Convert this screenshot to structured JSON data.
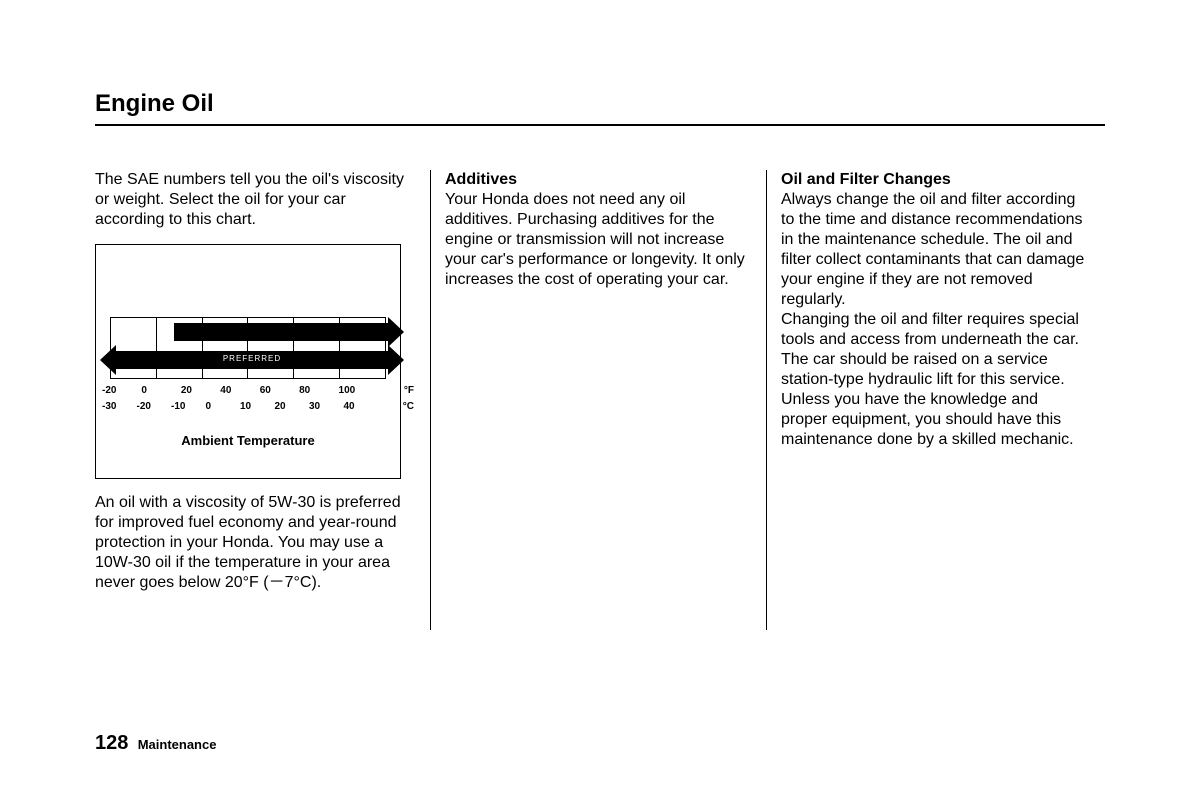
{
  "page": {
    "title": "Engine Oil",
    "page_number": "128",
    "section": "Maintenance"
  },
  "col1": {
    "intro": "The SAE numbers tell you the oil's viscosity or weight. Select the oil for your car according to this chart.",
    "outro": "An oil with a viscosity of 5W-30 is preferred for improved fuel economy and year-round protection in your Honda. You may use a 10W-30 oil if the temperature in your area never goes below 20°F (－7°C)."
  },
  "chart": {
    "type": "range-bar",
    "label": "Ambient Temperature",
    "f_ticks": [
      "-20",
      "0",
      "20",
      "40",
      "60",
      "80",
      "100"
    ],
    "f_unit": "°F",
    "c_ticks": [
      "-30",
      "-20",
      "-10",
      "0",
      "10",
      "20",
      "30",
      "40"
    ],
    "c_unit": "°C",
    "grid_cols": 6,
    "top_arrow_label": "",
    "bottom_arrow_label": "PREFERRED",
    "colors": {
      "bar": "#000000",
      "border": "#000000",
      "bg": "#ffffff"
    }
  },
  "col2": {
    "heading": "Additives",
    "body": "Your Honda does not need any oil additives. Purchasing additives for the engine or transmission will not increase your car's performance or longevity. It only increases the cost of operating your car."
  },
  "col3": {
    "heading": "Oil and Filter Changes",
    "body1": "Always change the oil and filter according to the time and distance recommendations in the maintenance schedule. The oil and filter collect contaminants that can damage your engine if they are not removed regularly.",
    "body2": "Changing the oil and filter requires special tools and access from underneath the car. The car should be raised on a service station-type hydraulic lift for this service. Unless you have the knowledge and proper equipment, you should have this maintenance done by a skilled mechanic."
  }
}
